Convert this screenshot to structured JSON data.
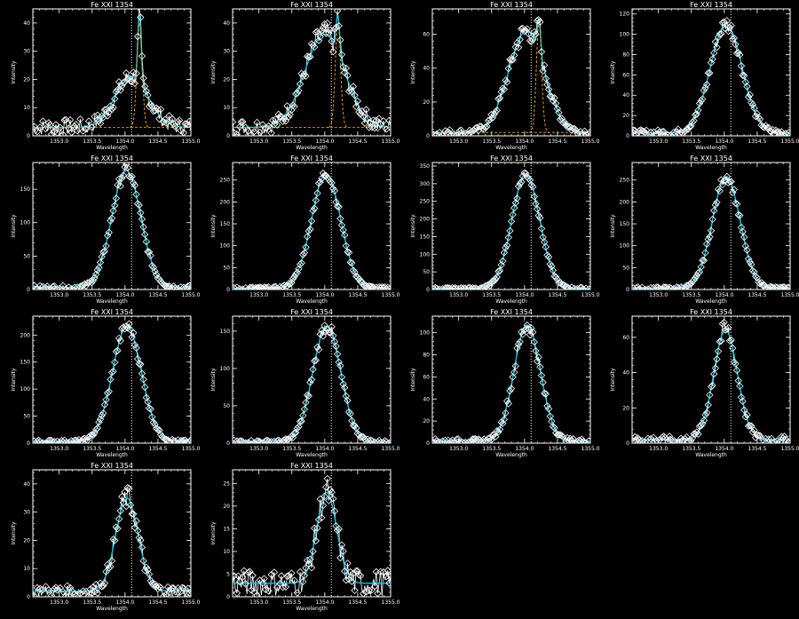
{
  "chart_data": [
    {
      "type": "line",
      "title": "Fe XXI 1354",
      "xlabel": "Wavelength",
      "ylabel": "Intensity",
      "xlim": [
        1352.6,
        1355.0
      ],
      "ylim": [
        0,
        45
      ],
      "xticks": [
        1353.0,
        1353.5,
        1354.0,
        1354.5,
        1355.0
      ],
      "yticks": [
        0,
        10,
        20,
        30,
        40
      ],
      "peak": 18,
      "center": 1354.1,
      "width": 0.25,
      "spike": {
        "x": 1354.22,
        "y": 40
      },
      "background": 3,
      "components": true
    },
    {
      "type": "line",
      "title": "Fe XXI 1354",
      "xlabel": "Wavelength",
      "ylabel": "Intensity",
      "xlim": [
        1352.6,
        1355.0
      ],
      "ylim": [
        0,
        45
      ],
      "xticks": [
        1353.0,
        1353.5,
        1354.0,
        1354.5,
        1355.0
      ],
      "yticks": [
        0,
        10,
        20,
        30,
        40
      ],
      "peak": 33,
      "center": 1354.0,
      "width": 0.3,
      "spike": {
        "x": 1354.2,
        "y": 40
      },
      "background": 3,
      "components": true
    },
    {
      "type": "line",
      "title": "Fe XXI 1354",
      "xlabel": "Wavelength",
      "ylabel": "Intensity",
      "xlim": [
        1352.6,
        1355.0
      ],
      "ylim": [
        0,
        75
      ],
      "xticks": [
        1353.0,
        1353.5,
        1354.0,
        1354.5,
        1355.0
      ],
      "yticks": [
        0,
        20,
        40,
        60
      ],
      "peak": 60,
      "center": 1354.03,
      "width": 0.27,
      "spike": {
        "x": 1354.22,
        "y": 67
      },
      "background": 2,
      "components": true
    },
    {
      "type": "line",
      "title": "Fe XXI 1354",
      "xlabel": "Wavelength",
      "ylabel": "Intensity",
      "xlim": [
        1352.6,
        1355.0
      ],
      "ylim": [
        0,
        125
      ],
      "xticks": [
        1353.0,
        1353.5,
        1354.0,
        1354.5,
        1355.0
      ],
      "yticks": [
        0,
        20,
        40,
        60,
        80,
        100,
        120
      ],
      "peak": 107,
      "center": 1354.03,
      "width": 0.24,
      "background": 3,
      "components": false
    },
    {
      "type": "line",
      "title": "Fe XXI 1354",
      "xlabel": "Wavelength",
      "ylabel": "Intensity",
      "xlim": [
        1352.6,
        1355.0
      ],
      "ylim": [
        0,
        190
      ],
      "xticks": [
        1353.0,
        1353.5,
        1354.0,
        1354.5,
        1355.0
      ],
      "yticks": [
        0,
        50,
        100,
        150
      ],
      "peak": 175,
      "center": 1354.02,
      "width": 0.22,
      "background": 3,
      "components": false
    },
    {
      "type": "line",
      "title": "Fe XXI 1354",
      "xlabel": "Wavelength",
      "ylabel": "Intensity",
      "xlim": [
        1352.6,
        1355.0
      ],
      "ylim": [
        0,
        290
      ],
      "xticks": [
        1353.0,
        1353.5,
        1354.0,
        1354.5,
        1355.0
      ],
      "yticks": [
        0,
        50,
        100,
        150,
        200,
        250
      ],
      "peak": 262,
      "center": 1354.02,
      "width": 0.22,
      "background": 3,
      "components": false
    },
    {
      "type": "line",
      "title": "Fe XXI 1354",
      "xlabel": "Wavelength",
      "ylabel": "Intensity",
      "xlim": [
        1352.6,
        1355.0
      ],
      "ylim": [
        0,
        360
      ],
      "xticks": [
        1353.0,
        1353.5,
        1354.0,
        1354.5,
        1355.0
      ],
      "yticks": [
        0,
        50,
        100,
        150,
        200,
        250,
        300,
        350
      ],
      "peak": 325,
      "center": 1354.02,
      "width": 0.21,
      "background": 3,
      "components": false
    },
    {
      "type": "line",
      "title": "Fe XXI 1354",
      "xlabel": "Wavelength",
      "ylabel": "Intensity",
      "xlim": [
        1352.6,
        1355.0
      ],
      "ylim": [
        0,
        290
      ],
      "xticks": [
        1353.0,
        1353.5,
        1354.0,
        1354.5,
        1355.0
      ],
      "yticks": [
        0,
        50,
        100,
        150,
        200,
        250
      ],
      "peak": 255,
      "center": 1354.03,
      "width": 0.21,
      "background": 3,
      "components": false
    },
    {
      "type": "line",
      "title": "Fe XXI 1354",
      "xlabel": "Wavelength",
      "ylabel": "Intensity",
      "xlim": [
        1352.6,
        1355.0
      ],
      "ylim": [
        0,
        235
      ],
      "xticks": [
        1353.0,
        1353.5,
        1354.0,
        1354.5,
        1355.0
      ],
      "yticks": [
        0,
        50,
        100,
        150,
        200
      ],
      "peak": 213,
      "center": 1354.03,
      "width": 0.22,
      "background": 3,
      "components": false
    },
    {
      "type": "line",
      "title": "Fe XXI 1354",
      "xlabel": "Wavelength",
      "ylabel": "Intensity",
      "xlim": [
        1352.6,
        1355.0
      ],
      "ylim": [
        0,
        170
      ],
      "xticks": [
        1353.0,
        1353.5,
        1354.0,
        1354.5,
        1355.0
      ],
      "yticks": [
        0,
        50,
        100,
        150
      ],
      "peak": 155,
      "center": 1354.03,
      "width": 0.21,
      "background": 2,
      "components": false
    },
    {
      "type": "line",
      "title": "Fe XXI 1354",
      "xlabel": "Wavelength",
      "ylabel": "Intensity",
      "xlim": [
        1352.6,
        1355.0
      ],
      "ylim": [
        0,
        115
      ],
      "xticks": [
        1353.0,
        1353.5,
        1354.0,
        1354.5,
        1355.0
      ],
      "yticks": [
        0,
        20,
        40,
        60,
        80,
        100
      ],
      "peak": 105,
      "center": 1354.04,
      "width": 0.2,
      "background": 2,
      "components": false
    },
    {
      "type": "line",
      "title": "Fe XXI 1354",
      "xlabel": "Wavelength",
      "ylabel": "Intensity",
      "xlim": [
        1352.6,
        1355.0
      ],
      "ylim": [
        0,
        72
      ],
      "xticks": [
        1353.0,
        1353.5,
        1354.0,
        1354.5,
        1355.0
      ],
      "yticks": [
        0,
        20,
        40,
        60
      ],
      "peak": 62,
      "center": 1354.02,
      "width": 0.18,
      "background": 2,
      "components": false
    },
    {
      "type": "line",
      "title": "Fe XXI 1354",
      "xlabel": "Wavelength",
      "ylabel": "Intensity",
      "xlim": [
        1352.6,
        1355.0
      ],
      "ylim": [
        0,
        45
      ],
      "xticks": [
        1353.0,
        1353.5,
        1354.0,
        1354.5,
        1355.0
      ],
      "yticks": [
        0,
        10,
        20,
        30,
        40
      ],
      "peak": 33,
      "center": 1354.03,
      "width": 0.17,
      "background": 2,
      "components": false
    },
    {
      "type": "line",
      "title": "Fe XXI 1354",
      "xlabel": "Wavelength",
      "ylabel": "Intensity",
      "xlim": [
        1352.6,
        1355.0
      ],
      "ylim": [
        0,
        28
      ],
      "xticks": [
        1353.0,
        1353.5,
        1354.0,
        1354.5,
        1355.0
      ],
      "yticks": [
        0,
        5,
        10,
        15,
        20,
        25
      ],
      "peak": 20,
      "center": 1354.03,
      "width": 0.15,
      "background": 3,
      "components": false
    }
  ],
  "colors": {
    "background": "#000000",
    "axes": "#ffffff",
    "data": "#ffffff",
    "fit": "#00c8e8",
    "component": "#ffa500",
    "reference": "#ffffff"
  }
}
